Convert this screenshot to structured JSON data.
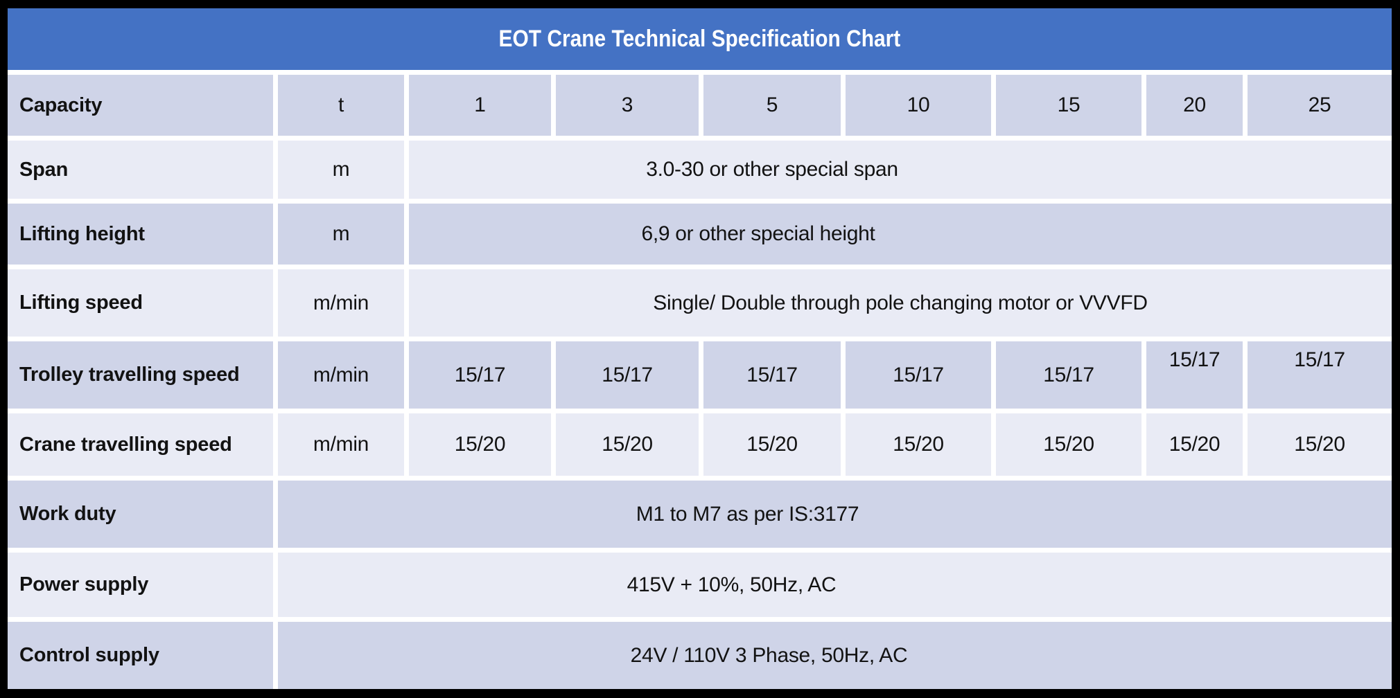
{
  "title": "EOT Crane Technical Specification Chart",
  "rows": [
    {
      "label": "Capacity",
      "unit": "t",
      "values": [
        "1",
        "3",
        "5",
        "10",
        "15",
        "20",
        "25"
      ]
    },
    {
      "label": "Span",
      "unit": "m",
      "value": "3.0-30 or other special span"
    },
    {
      "label": "Lifting height",
      "unit": "m",
      "value": "6,9 or other special height"
    },
    {
      "label": "Lifting speed",
      "unit": "m/min",
      "value": "Single/ Double through pole changing motor or VVVFD"
    },
    {
      "label": "Trolley travelling speed",
      "unit": "m/min",
      "values": [
        "15/17",
        "15/17",
        "15/17",
        "15/17",
        "15/17",
        "15/17",
        "15/17"
      ]
    },
    {
      "label": "Crane travelling speed",
      "unit": "m/min",
      "values": [
        "15/20",
        "15/20",
        "15/20",
        "15/20",
        "15/20",
        "15/20",
        "15/20"
      ]
    },
    {
      "label": "Work duty",
      "value": "M1 to M7 as per IS:3177"
    },
    {
      "label": "Power supply",
      "value": "415V + 10%, 50Hz, AC"
    },
    {
      "label": "Control supply",
      "value": "24V / 110V 3 Phase, 50Hz, AC"
    }
  ],
  "colors": {
    "title_bar_blue": "#4472C4",
    "title_text": "#FFFFFF",
    "band_dark": "#CFD4E8",
    "band_light": "#E9EBF5",
    "grid_line_white": "#FFFFFF",
    "outer_border_black": "#000000",
    "body_text": "#121212"
  }
}
